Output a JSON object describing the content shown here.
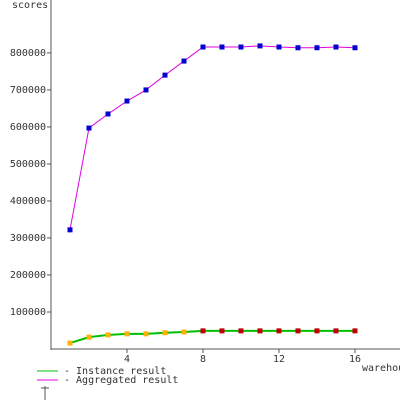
{
  "chart_data": {
    "type": "line",
    "y_label": "scores",
    "x_label": "warehouses",
    "xlim": [
      0,
      18.37
    ],
    "xticks": [
      4,
      8,
      12,
      16
    ],
    "ylim": [
      0,
      943000
    ],
    "yticks": [
      100000,
      200000,
      300000,
      400000,
      500000,
      600000,
      700000,
      800000
    ],
    "x": [
      1,
      2,
      3,
      4,
      5,
      6,
      7,
      8,
      9,
      10,
      11,
      12,
      13,
      14,
      15,
      16
    ],
    "series": [
      {
        "name": "- Instance result",
        "color": "#00c000",
        "marker_colors": [
          "#ffb000",
          "#ffb000",
          "#ffb000",
          "#ffb000",
          "#ffb000",
          "#ffb000",
          "#ffb000",
          "#c00000",
          "#c00000",
          "#c00000",
          "#c00000",
          "#c00000",
          "#c00000",
          "#c00000",
          "#c00000",
          "#c00000"
        ],
        "values": [
          16000,
          32000,
          38000,
          41000,
          41000,
          44000,
          46000,
          49000,
          49000,
          49000,
          49000,
          49000,
          49000,
          49000,
          49000,
          49000
        ]
      },
      {
        "name": "- Aggregated result",
        "color": "#e000e0",
        "marker_colors": [
          "#0000d0",
          "#0000d0",
          "#0000d0",
          "#0000d0",
          "#0000d0",
          "#0000d0",
          "#0000d0",
          "#0000d0",
          "#0000d0",
          "#0000d0",
          "#0000d0",
          "#0000d0",
          "#0000d0",
          "#0000d0",
          "#0000d0",
          "#0000d0"
        ],
        "values": [
          322000,
          597000,
          635000,
          670000,
          700000,
          740000,
          778000,
          816000,
          816000,
          816000,
          819000,
          816000,
          814000,
          814000,
          816000,
          814000
        ]
      }
    ]
  }
}
